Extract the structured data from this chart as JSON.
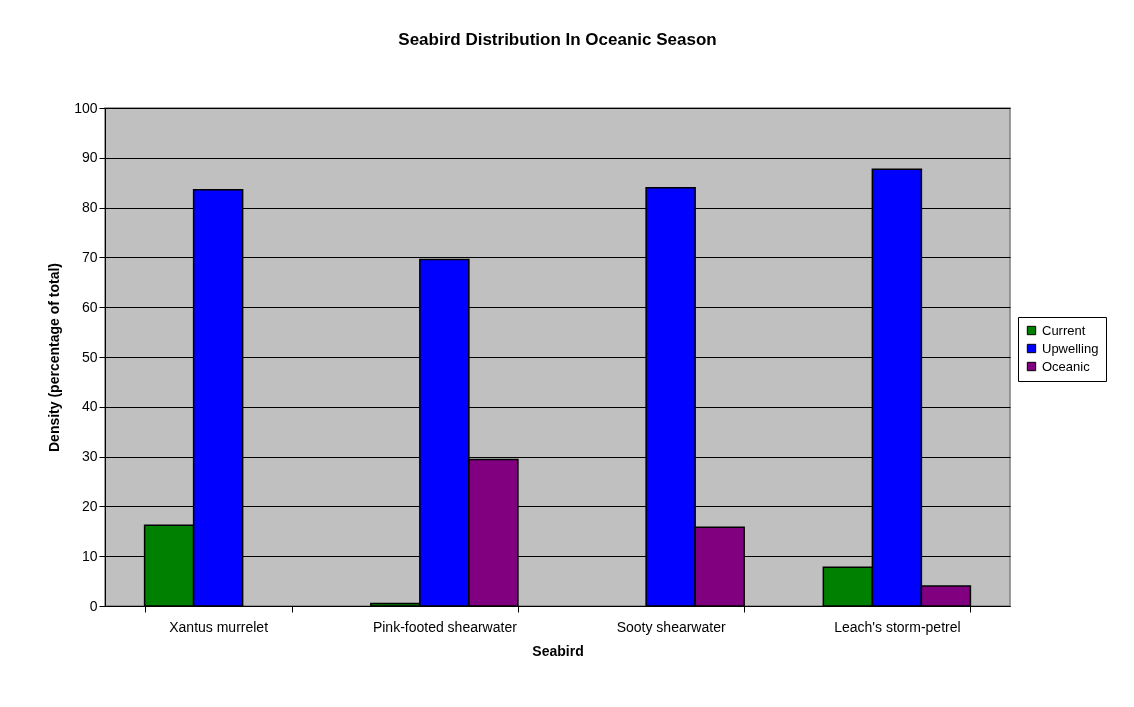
{
  "chart_data": {
    "type": "bar",
    "title": "Seabird Distribution In Oceanic Season",
    "xlabel": "Seabird",
    "ylabel": "Density (percentage of total)",
    "categories": [
      "Xantus murrelet",
      "Pink-footed shearwater",
      "Sooty shearwater",
      "Leach's storm-petrel"
    ],
    "series": [
      {
        "name": "Current",
        "color": "#008000",
        "values": [
          16.2,
          0.5,
          null,
          7.8
        ]
      },
      {
        "name": "Upwelling",
        "color": "#0000ff",
        "values": [
          83.6,
          69.6,
          84.0,
          87.7
        ]
      },
      {
        "name": "Oceanic",
        "color": "#800080",
        "values": [
          null,
          29.4,
          15.8,
          4.0
        ]
      }
    ],
    "ylim": [
      0,
      100
    ],
    "yticks": [
      0,
      10,
      20,
      30,
      40,
      50,
      60,
      70,
      80,
      90,
      100
    ],
    "grid": "y",
    "legend": "right"
  }
}
